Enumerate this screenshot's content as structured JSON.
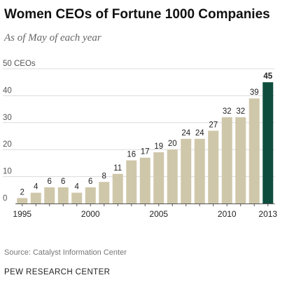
{
  "header": {
    "title": "Women CEOs of Fortune 1000 Companies",
    "subtitle": "As of May of each year"
  },
  "footer": {
    "source": "Source: Catalyst Information Center",
    "organization": "PEW RESEARCH CENTER"
  },
  "colors": {
    "bar": "#cfc7a9",
    "highlight_bar": "#0f4d3e",
    "grid": "#dcdcdc",
    "axis": "#555555",
    "label_text": "#222222",
    "tick_text": "#555555"
  },
  "chart_data": {
    "type": "bar",
    "title": "Women CEOs of Fortune 1000 Companies",
    "subtitle": "As of May of each year",
    "x": [
      1995,
      1996,
      1997,
      1998,
      1999,
      2000,
      2001,
      2002,
      2003,
      2004,
      2005,
      2006,
      2007,
      2008,
      2009,
      2010,
      2011,
      2012,
      2013
    ],
    "values": [
      2,
      4,
      6,
      6,
      4,
      6,
      8,
      11,
      16,
      17,
      19,
      20,
      24,
      24,
      27,
      32,
      32,
      39,
      45
    ],
    "highlight": [
      2013
    ],
    "x_tick_labels": [
      "1995",
      "2000",
      "2005",
      "2010",
      "2013"
    ],
    "y_ticks": [
      0,
      10,
      20,
      30,
      40,
      50
    ],
    "y_tick_labels": [
      "0",
      "10",
      "20",
      "30",
      "40",
      "50 CEOs"
    ],
    "ylim": [
      0,
      50
    ],
    "grid": true,
    "legend": false
  }
}
